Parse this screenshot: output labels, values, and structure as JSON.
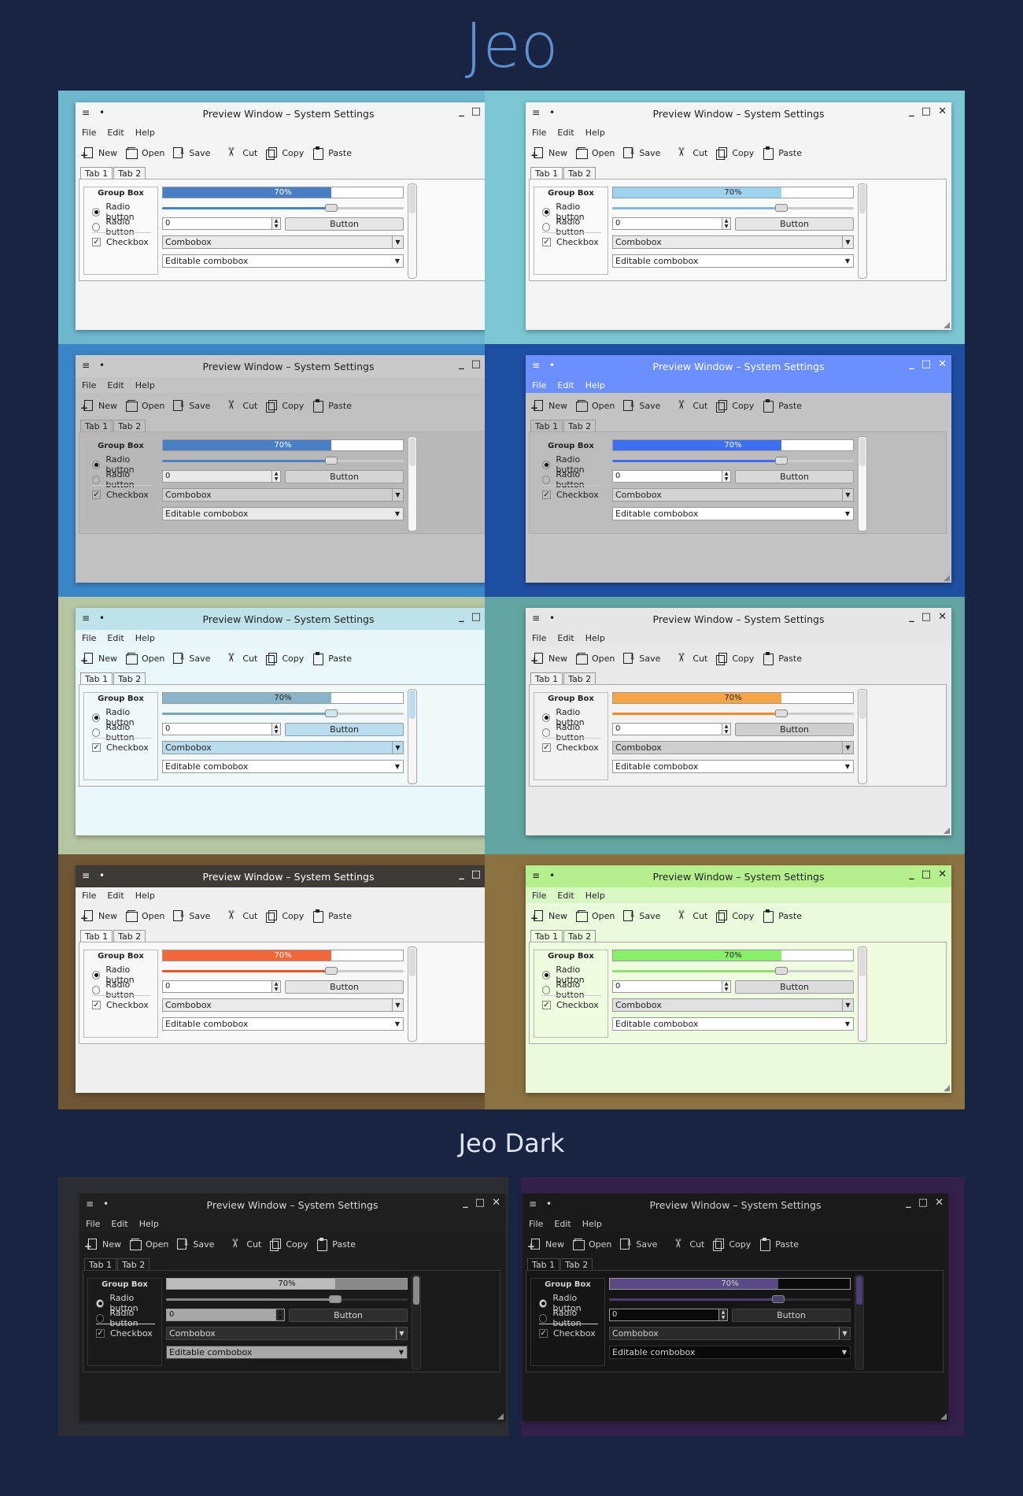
{
  "page": {
    "title": "Jeo",
    "dark_title": "Jeo Dark"
  },
  "common": {
    "window_title": "Preview Window – System Settings",
    "menu_glyph": "≡",
    "dot_glyph": "•",
    "min_glyph": "_",
    "max_glyph": "□",
    "close_glyph": "✕",
    "menus": [
      "File",
      "Edit",
      "Help"
    ],
    "tools": [
      "New",
      "Open",
      "Save",
      "Cut",
      "Copy",
      "Paste"
    ],
    "tabs": [
      "Tab 1",
      "Tab 2"
    ],
    "group_title": "Group Box",
    "radio_1": "Radio button",
    "radio_2": "Radio button",
    "checkbox": "Checkbox",
    "check_glyph": "✓",
    "progress_value": 0.7,
    "progress_label": "70%",
    "spin_value": "0",
    "button_label": "Button",
    "combobox": "Combobox",
    "editable_combobox": "Editable combobox",
    "arrow_glyph": "▼",
    "spin_up": "▲",
    "spin_down": "▼"
  },
  "themes": [
    {
      "bg": "#6db7cf",
      "titlebar": "#f4f4f4",
      "title_fg": "#222222",
      "menubar": "#f4f4f4",
      "body": "#f4f4f4",
      "content": "#fafafa",
      "accent": "#4a7fc5",
      "accent_text": "#ffffff",
      "btn": "#e6e6e6",
      "combo": "#eaeaea",
      "edit": "#ffffff",
      "fg": "#222222",
      "track_fill": "#4a7fc5",
      "handle": "#dddddd"
    },
    {
      "bg": "#7ac7d3",
      "titlebar": "#f4f4f4",
      "title_fg": "#222222",
      "menubar": "#f4f4f4",
      "body": "#f4f4f4",
      "content": "#fafafa",
      "accent": "#9ed3f0",
      "accent_text": "#222222",
      "btn": "#e6e6e6",
      "combo": "#eaeaea",
      "edit": "#ffffff",
      "fg": "#222222",
      "track_fill": "#7fb8da",
      "handle": "#dddddd"
    },
    {
      "bg": "#3b86c9",
      "titlebar": "#c9c9c9",
      "title_fg": "#222222",
      "menubar": "#c4c4c4",
      "body": "#c0c0c0",
      "content": "#b8b8b8",
      "accent": "#4a7fc5",
      "accent_text": "#ffffff",
      "btn": "#d4d4d4",
      "combo": "#cfcfcf",
      "edit": "#e9e9e9",
      "fg": "#222222",
      "track_fill": "#4a7fc5",
      "handle": "#dddddd"
    },
    {
      "bg": "#1e4ea0",
      "titlebar": "#6b8fff",
      "title_fg": "#ffffff",
      "menubar": "#6b8fff",
      "body": "#c4c4c4",
      "content": "#bcbcbc",
      "accent": "#3f6ef0",
      "accent_text": "#ffffff",
      "btn": "#d8d8d8",
      "combo": "#d4d4d4",
      "edit": "#ffffff",
      "fg": "#222222",
      "track_fill": "#3f6ef0",
      "handle": "#dddddd"
    },
    {
      "bg": "#b4c6a2",
      "titlebar": "#bee2ea",
      "title_fg": "#222222",
      "menubar": "#e8f6fa",
      "body": "#e9f6fa",
      "content": "#f1f9fb",
      "accent": "#8ab4c7",
      "accent_text": "#222222",
      "btn": "#b9dcef",
      "combo": "#b9dcef",
      "edit": "#ffffff",
      "fg": "#222222",
      "track_fill": "#7aa6b9",
      "handle": "#cfe7f3"
    },
    {
      "bg": "#62a5a0",
      "titlebar": "#e6e6e6",
      "title_fg": "#222222",
      "menubar": "#e6e6e6",
      "body": "#e9e9e9",
      "content": "#f2f2f2",
      "accent": "#f7a545",
      "accent_text": "#222222",
      "btn": "#cfcfcf",
      "combo": "#cfcfcf",
      "edit": "#ffffff",
      "fg": "#222222",
      "track_fill": "#f08a2a",
      "handle": "#dddddd"
    },
    {
      "bg": "#6f5735",
      "titlebar": "#3e3b37",
      "title_fg": "#ffffff",
      "menubar": "#f0f0f0",
      "body": "#f0f0f0",
      "content": "#f8f8f8",
      "accent": "#f2683a",
      "accent_text": "#ffffff",
      "btn": "#e6e6e6",
      "combo": "#eaeaea",
      "edit": "#ffffff",
      "fg": "#222222",
      "track_fill": "#e4542a",
      "handle": "#dddddd"
    },
    {
      "bg": "#8a7240",
      "titlebar": "#b5ef8e",
      "title_fg": "#222222",
      "menubar": "#d9f7c4",
      "body": "#eafbdd",
      "content": "#effcdf",
      "accent": "#8af06a",
      "accent_text": "#222222",
      "btn": "#dcdcdc",
      "combo": "#e0e0e0",
      "edit": "#ffffff",
      "fg": "#222222",
      "track_fill": "#8fe06f",
      "handle": "#dddddd"
    },
    {
      "bg": "#2d2d34",
      "titlebar": "#1f1f1f",
      "title_fg": "#d8d8d8",
      "menubar": "#1f1f1f",
      "body": "#1d1d1d",
      "content": "#1a1a1a",
      "accent": "#bcbcbc",
      "accent_text": "#111111",
      "btn": "#2e2e2e",
      "combo": "#2e2e2e",
      "edit": "#a8a8a8",
      "fg": "#d8d8d8",
      "track_fill": "#8a8a8a",
      "handle": "#9a9a9a"
    },
    {
      "bg": "#33204a",
      "titlebar": "#1a1a1a",
      "title_fg": "#d0d0d0",
      "menubar": "#1a1a1a",
      "body": "#191919",
      "content": "#151515",
      "accent": "#5a4a86",
      "accent_text": "#d0d0d0",
      "btn": "#2a2a2a",
      "combo": "#2a2a2a",
      "edit": "#0a0a0a",
      "fg": "#d0d0d0",
      "track_fill": "#4b3f75",
      "handle": "#4a4270"
    }
  ]
}
